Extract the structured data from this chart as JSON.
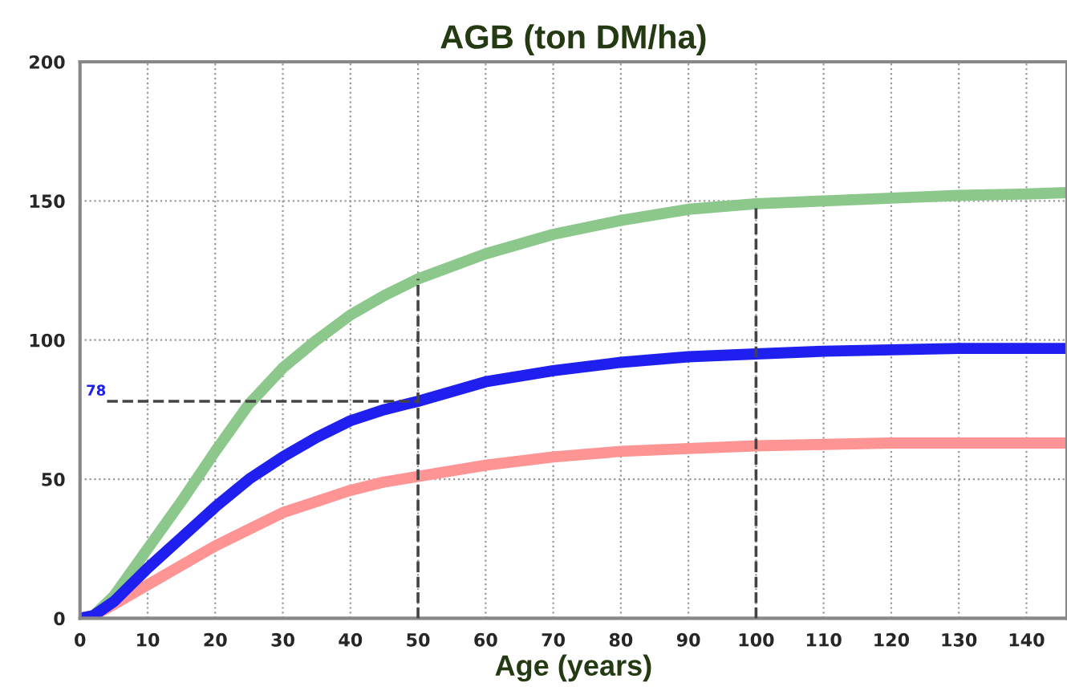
{
  "chart_data": {
    "type": "line",
    "title": "AGB (ton DM/ha)",
    "xlabel": "Age (years)",
    "xlim": [
      0,
      146
    ],
    "ylim": [
      0,
      200
    ],
    "xticks": [
      0,
      10,
      20,
      30,
      40,
      50,
      60,
      70,
      80,
      90,
      100,
      110,
      120,
      130,
      140
    ],
    "yticks": [
      0,
      50,
      100,
      150,
      200
    ],
    "grid": true,
    "line_style": "solid",
    "series": [
      {
        "color": "#8cc88c",
        "x": [
          0,
          2,
          5,
          10,
          15,
          20,
          25,
          30,
          35,
          40,
          45,
          50,
          60,
          70,
          80,
          90,
          100,
          110,
          120,
          130,
          140,
          146
        ],
        "values": [
          0,
          1,
          8,
          25,
          42,
          60,
          77,
          90,
          100,
          109,
          116,
          122,
          131,
          138,
          143,
          147,
          149,
          150,
          151,
          152,
          152.5,
          153
        ]
      },
      {
        "color": "#ff9494",
        "x": [
          0,
          2,
          5,
          10,
          15,
          20,
          25,
          30,
          35,
          40,
          45,
          50,
          60,
          70,
          80,
          90,
          100,
          110,
          120,
          130,
          140,
          146
        ],
        "values": [
          0,
          1,
          5,
          12,
          19,
          26,
          32,
          38,
          42,
          46,
          49,
          51,
          55,
          58,
          60,
          61,
          62,
          62.5,
          63,
          63,
          63,
          63
        ]
      },
      {
        "color": "#1f1ff0",
        "x": [
          0,
          2,
          5,
          10,
          15,
          20,
          25,
          30,
          35,
          40,
          45,
          50,
          60,
          70,
          80,
          90,
          100,
          110,
          120,
          130,
          140,
          146
        ],
        "values": [
          0,
          1,
          6,
          18,
          29,
          40,
          50,
          58,
          65,
          71,
          75,
          78,
          85,
          89,
          92,
          94,
          95,
          96,
          96.5,
          97,
          97,
          97
        ]
      },
      {
        "color": "#444444",
        "line_style": "dashed",
        "x": [
          50,
          50
        ],
        "values": [
          0,
          122
        ]
      },
      {
        "color": "#444444",
        "line_style": "dashed",
        "x": [
          100,
          100
        ],
        "values": [
          0,
          149
        ]
      },
      {
        "color": "#444444",
        "line_style": "dashed",
        "x": [
          4,
          50
        ],
        "values": [
          78,
          78
        ]
      }
    ],
    "annotations": [
      "78"
    ]
  }
}
